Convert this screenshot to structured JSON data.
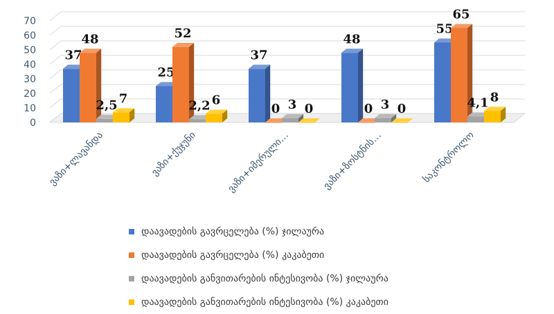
{
  "chart_data": {
    "type": "bar",
    "categories": [
      "ვაზი+ლავანდა",
      "ვაზი+ქუჯუნი",
      "ვაზი+იმერული…",
      "ვაზი+ზოსტნის…",
      "საკონტროლო"
    ],
    "series": [
      {
        "name": "დაავადების გავრცელება (%) ჯილაურა",
        "values": [
          37,
          25,
          37,
          48,
          55
        ],
        "labels": [
          "37",
          "25",
          "37",
          "48",
          "55"
        ]
      },
      {
        "name": "დაავადების გავრცელება (%) კაკაბეთი",
        "values": [
          48,
          52,
          0,
          0,
          65
        ],
        "labels": [
          "48",
          "52",
          "0",
          "0",
          "65"
        ]
      },
      {
        "name": "დაავადების  განვითარების ინტესივობა (%) ჯილაურა",
        "values": [
          2.5,
          2.2,
          3,
          3,
          4.1
        ],
        "labels": [
          "2,5",
          "2,2",
          "3",
          "3",
          "4,1"
        ]
      },
      {
        "name": "დაავადების  განვითარების ინტესივობა (%) კაკაბეთი",
        "values": [
          7,
          6,
          0,
          0,
          8
        ],
        "labels": [
          "7",
          "6",
          "0",
          "0",
          "8"
        ]
      }
    ],
    "yticks": [
      "0",
      "10",
      "20",
      "30",
      "40",
      "50",
      "60",
      "70"
    ],
    "ylim": [
      0,
      70
    ],
    "colors": [
      "#4a78c8",
      "#f07a32",
      "#a3a3a3",
      "#ffc000"
    ],
    "grid": true,
    "legend": "bottom"
  }
}
